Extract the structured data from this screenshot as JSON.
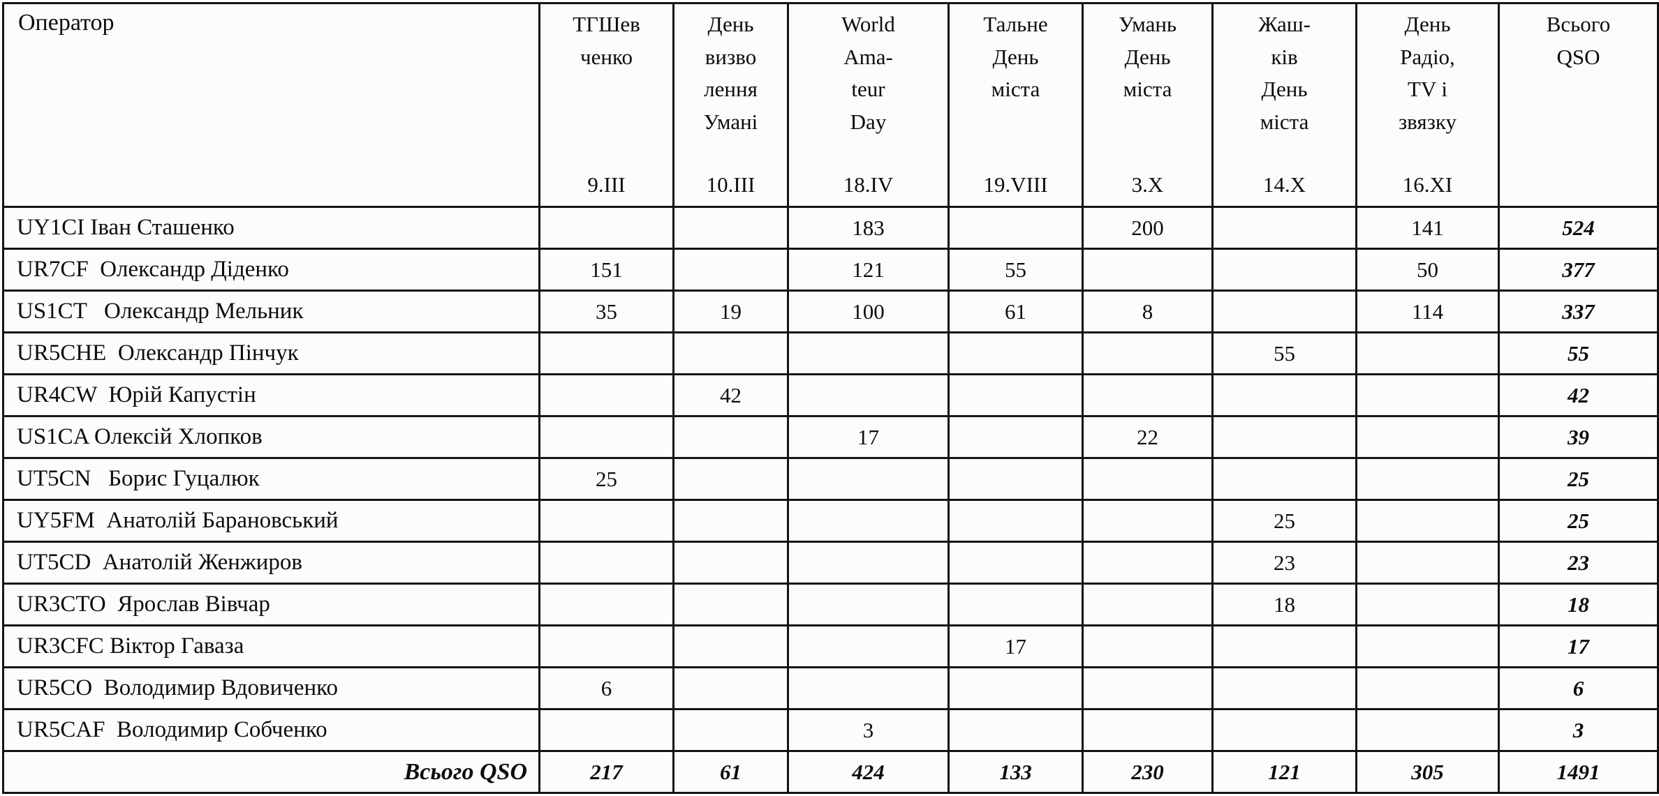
{
  "table": {
    "operator_header": "Оператор",
    "columns": [
      {
        "lines": [
          "ТГШев",
          "ченко"
        ],
        "date": "9.III"
      },
      {
        "lines": [
          "День",
          "визво",
          "лення",
          "Умані"
        ],
        "date": "10.III"
      },
      {
        "lines": [
          "World",
          "Ama-",
          "teur",
          "Day"
        ],
        "date": "18.IV"
      },
      {
        "lines": [
          "Тальне",
          "День",
          "міста"
        ],
        "date": "19.VIII"
      },
      {
        "lines": [
          "Умань",
          "День",
          "міста"
        ],
        "date": "3.X"
      },
      {
        "lines": [
          "Жаш-",
          "ків",
          "День",
          "міста"
        ],
        "date": "14.X"
      },
      {
        "lines": [
          "День",
          "Радіо,",
          "TV і",
          "звязку"
        ],
        "date": "16.XI"
      },
      {
        "lines": [
          "Всього",
          "QSO"
        ],
        "date": ""
      }
    ],
    "rows": [
      {
        "operator": "UY1CI Іван Сташенко",
        "values": [
          "",
          "",
          "183",
          "",
          "200",
          "",
          "141"
        ],
        "total": "524"
      },
      {
        "operator": "UR7CF  Олександр Діденко",
        "values": [
          "151",
          "",
          "121",
          "55",
          "",
          "",
          "50"
        ],
        "total": "377"
      },
      {
        "operator": "US1CT   Олександр Мельник",
        "values": [
          "35",
          "19",
          "100",
          "61",
          "8",
          "",
          "114"
        ],
        "total": "337"
      },
      {
        "operator": "UR5CHE  Олександр Пінчук",
        "values": [
          "",
          "",
          "",
          "",
          "",
          "55",
          ""
        ],
        "total": "55"
      },
      {
        "operator": "UR4CW  Юрій Капустін",
        "values": [
          "",
          "42",
          "",
          "",
          "",
          "",
          ""
        ],
        "total": "42"
      },
      {
        "operator": "US1CA Олексій Хлопков",
        "values": [
          "",
          "",
          "17",
          "",
          "22",
          "",
          ""
        ],
        "total": "39"
      },
      {
        "operator": "UT5CN   Борис Гуцалюк",
        "values": [
          "25",
          "",
          "",
          "",
          "",
          "",
          ""
        ],
        "total": "25"
      },
      {
        "operator": "UY5FM  Анатолій Барановський",
        "values": [
          "",
          "",
          "",
          "",
          "",
          "25",
          ""
        ],
        "total": "25"
      },
      {
        "operator": "UT5CD  Анатолій Женжиров",
        "values": [
          "",
          "",
          "",
          "",
          "",
          "23",
          ""
        ],
        "total": "23"
      },
      {
        "operator": "UR3CTO  Ярослав Вівчар",
        "values": [
          "",
          "",
          "",
          "",
          "",
          "18",
          ""
        ],
        "total": "18"
      },
      {
        "operator": "UR3CFC Віктор Гаваза",
        "values": [
          "",
          "",
          "",
          "17",
          "",
          "",
          ""
        ],
        "total": "17"
      },
      {
        "operator": "UR5CO  Володимир Вдовиченко",
        "values": [
          "6",
          "",
          "",
          "",
          "",
          "",
          ""
        ],
        "total": "6"
      },
      {
        "operator": "UR5CAF  Володимир Собченко",
        "values": [
          "",
          "",
          "3",
          "",
          "",
          "",
          ""
        ],
        "total": "3"
      }
    ],
    "total_row": {
      "label": "Всього QSO",
      "values": [
        "217",
        "61",
        "424",
        "133",
        "230",
        "121",
        "305"
      ],
      "total": "1491"
    }
  }
}
